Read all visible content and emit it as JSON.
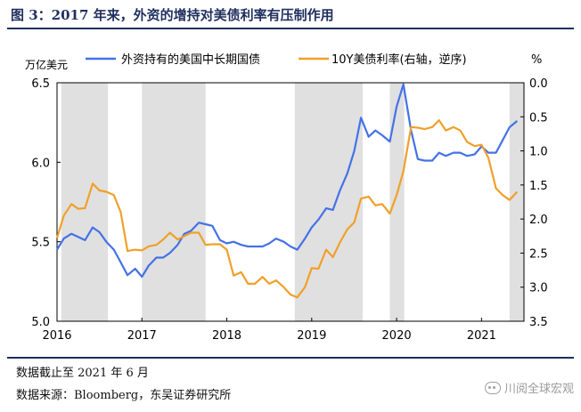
{
  "figure": {
    "title": "图 3：2017 年来，外资的增持对美债利率有压制作用",
    "note_cutoff": "数据截止至 2021 年 6 月",
    "note_source": "数据来源：Bloomberg，东吴证券研究所",
    "watermark": "川阅全球宏观"
  },
  "colors": {
    "series_left": "#4472e6",
    "series_right": "#f0a02a",
    "shade": "#e0e0e0",
    "title": "#1f2f5e"
  },
  "chart_data": {
    "type": "line",
    "left_axis": {
      "unit_label": "万亿美元",
      "ylim": [
        5.0,
        6.5
      ],
      "ticks": [
        "5.0",
        "5.5",
        "6.0",
        "6.5"
      ]
    },
    "right_axis": {
      "unit_label": "%",
      "ylim": [
        0.0,
        3.5
      ],
      "inverted": true,
      "ticks": [
        "0.0",
        "0.5",
        "1.0",
        "1.5",
        "2.0",
        "2.5",
        "3.0",
        "3.5"
      ]
    },
    "x_axis": {
      "xlim": [
        2016.0,
        2021.5
      ],
      "ticks": [
        "2016",
        "2017",
        "2018",
        "2019",
        "2020",
        "2021"
      ]
    },
    "legend": {
      "placement": "top"
    },
    "shaded_periods": [
      [
        2016.05,
        2016.6
      ],
      [
        2017.0,
        2017.75
      ],
      [
        2018.8,
        2019.6
      ],
      [
        2019.92,
        2020.09
      ],
      [
        2021.33,
        2021.5
      ]
    ],
    "series": [
      {
        "name": "外资持有的美国中长期国债",
        "axis": "left",
        "x": [
          2016.0,
          2016.08,
          2016.17,
          2016.25,
          2016.33,
          2016.42,
          2016.5,
          2016.58,
          2016.67,
          2016.75,
          2016.83,
          2016.92,
          2017.0,
          2017.08,
          2017.17,
          2017.25,
          2017.33,
          2017.42,
          2017.5,
          2017.58,
          2017.67,
          2017.75,
          2017.83,
          2017.92,
          2018.0,
          2018.08,
          2018.17,
          2018.25,
          2018.33,
          2018.42,
          2018.5,
          2018.58,
          2018.67,
          2018.75,
          2018.83,
          2018.92,
          2019.0,
          2019.08,
          2019.17,
          2019.25,
          2019.33,
          2019.42,
          2019.5,
          2019.58,
          2019.67,
          2019.75,
          2019.83,
          2019.92,
          2020.0,
          2020.08,
          2020.17,
          2020.25,
          2020.33,
          2020.42,
          2020.5,
          2020.58,
          2020.67,
          2020.75,
          2020.83,
          2020.92,
          2021.0,
          2021.08,
          2021.17,
          2021.25,
          2021.33,
          2021.42
        ],
        "values": [
          5.45,
          5.52,
          5.55,
          5.53,
          5.51,
          5.59,
          5.56,
          5.5,
          5.45,
          5.37,
          5.29,
          5.33,
          5.28,
          5.35,
          5.4,
          5.4,
          5.43,
          5.48,
          5.55,
          5.57,
          5.62,
          5.61,
          5.6,
          5.51,
          5.49,
          5.5,
          5.48,
          5.47,
          5.47,
          5.47,
          5.49,
          5.52,
          5.5,
          5.47,
          5.45,
          5.52,
          5.59,
          5.64,
          5.71,
          5.7,
          5.82,
          5.93,
          6.07,
          6.28,
          6.16,
          6.2,
          6.17,
          6.13,
          6.35,
          6.49,
          6.2,
          6.02,
          6.01,
          6.01,
          6.06,
          6.04,
          6.06,
          6.06,
          6.04,
          6.05,
          6.1,
          6.06,
          6.06,
          6.14,
          6.22,
          6.26
        ]
      },
      {
        "name": "10Y美债利率(右轴，逆序)",
        "axis": "right",
        "x": [
          2016.0,
          2016.08,
          2016.17,
          2016.25,
          2016.33,
          2016.42,
          2016.5,
          2016.58,
          2016.67,
          2016.75,
          2016.83,
          2016.92,
          2017.0,
          2017.08,
          2017.17,
          2017.25,
          2017.33,
          2017.42,
          2017.5,
          2017.58,
          2017.67,
          2017.75,
          2017.83,
          2017.92,
          2018.0,
          2018.08,
          2018.17,
          2018.25,
          2018.33,
          2018.42,
          2018.5,
          2018.58,
          2018.67,
          2018.75,
          2018.83,
          2018.92,
          2019.0,
          2019.08,
          2019.17,
          2019.25,
          2019.33,
          2019.42,
          2019.5,
          2019.58,
          2019.67,
          2019.75,
          2019.83,
          2019.92,
          2020.0,
          2020.08,
          2020.17,
          2020.25,
          2020.33,
          2020.42,
          2020.5,
          2020.58,
          2020.67,
          2020.75,
          2020.83,
          2020.92,
          2021.0,
          2021.08,
          2021.17,
          2021.25,
          2021.33,
          2021.42
        ],
        "values": [
          2.28,
          1.95,
          1.78,
          1.85,
          1.84,
          1.48,
          1.58,
          1.6,
          1.65,
          1.9,
          2.47,
          2.45,
          2.46,
          2.4,
          2.38,
          2.3,
          2.2,
          2.3,
          2.25,
          2.2,
          2.2,
          2.38,
          2.37,
          2.37,
          2.45,
          2.83,
          2.78,
          2.95,
          2.95,
          2.85,
          2.95,
          2.9,
          3.0,
          3.11,
          3.15,
          3.0,
          2.72,
          2.73,
          2.45,
          2.56,
          2.35,
          2.15,
          2.05,
          1.7,
          1.67,
          1.8,
          1.78,
          1.92,
          1.65,
          1.3,
          0.65,
          0.66,
          0.68,
          0.65,
          0.55,
          0.7,
          0.65,
          0.7,
          0.87,
          0.93,
          0.91,
          1.1,
          1.55,
          1.65,
          1.72,
          1.6
        ]
      }
    ]
  }
}
